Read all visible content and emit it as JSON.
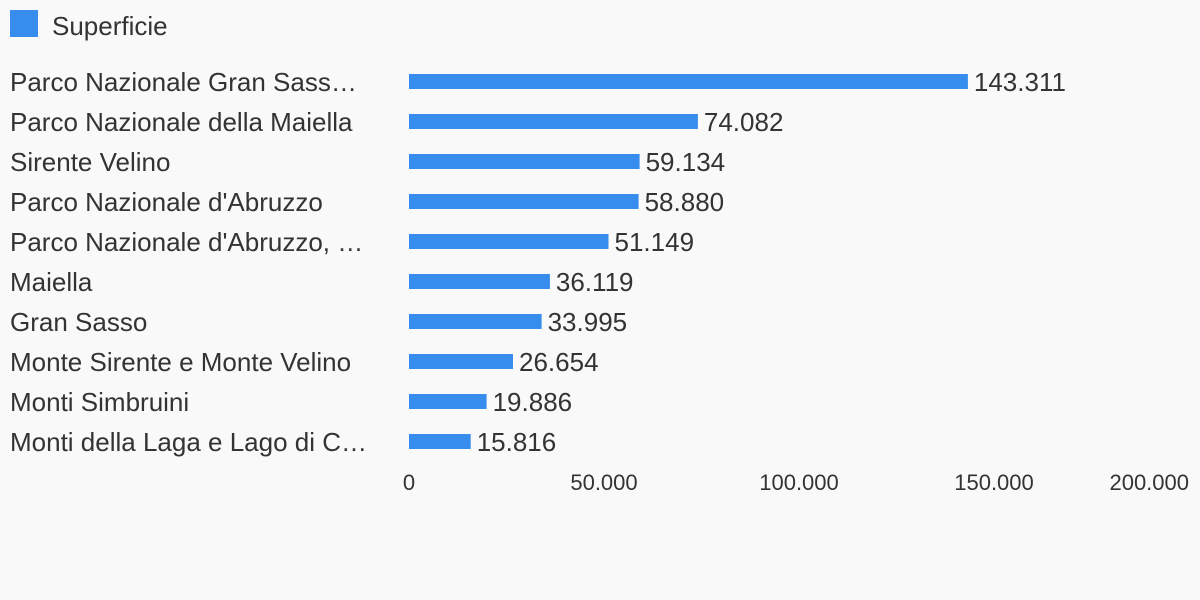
{
  "chart_data": {
    "type": "bar",
    "orientation": "horizontal",
    "categories": [
      "Parco Nazionale Gran Sass…",
      "Parco Nazionale della Maiella",
      "Sirente Velino",
      "Parco Nazionale d'Abruzzo",
      "Parco Nazionale d'Abruzzo, …",
      "Maiella",
      "Gran Sasso",
      "Monte Sirente e Monte Velino",
      "Monti Simbruini",
      "Monti della Laga e Lago di C…"
    ],
    "series": [
      {
        "name": "Superficie",
        "color": "#368ded",
        "values": [
          143311,
          74082,
          59134,
          58880,
          51149,
          36119,
          33995,
          26654,
          19886,
          15816
        ],
        "value_labels": [
          "143.311",
          "74.082",
          "59.134",
          "58.880",
          "51.149",
          "36.119",
          "33.995",
          "26.654",
          "19.886",
          "15.816"
        ]
      }
    ],
    "xlim": [
      0,
      200000
    ],
    "x_ticks": [
      0,
      50000,
      100000,
      150000,
      200000
    ],
    "x_tick_labels": [
      "0",
      "50.000",
      "100.000",
      "150.000",
      "200.000"
    ],
    "legend_position": "top-left",
    "grid": false
  }
}
